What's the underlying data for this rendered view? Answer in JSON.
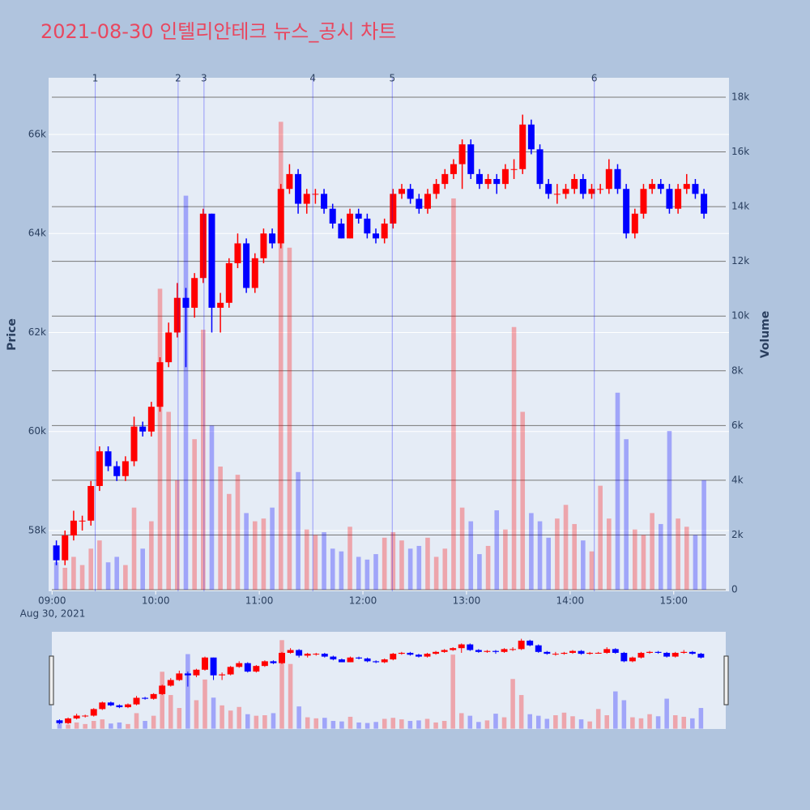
{
  "chart_data": {
    "type": "candlestick",
    "title": "2021-08-30 인텔리안테크 뉴스_공시 차트",
    "ylabel": "Price",
    "y2label": "Volume",
    "x_date_label": "Aug 30, 2021",
    "increasing_color": "#ff0000",
    "decreasing_color": "#0000ff",
    "grid": true,
    "rangeslider": true,
    "x": [
      "09:00",
      "09:05",
      "09:10",
      "09:15",
      "09:20",
      "09:25",
      "09:30",
      "09:35",
      "09:40",
      "09:45",
      "09:50",
      "09:55",
      "10:00",
      "10:05",
      "10:10",
      "10:15",
      "10:20",
      "10:25",
      "10:30",
      "10:35",
      "10:40",
      "10:45",
      "10:50",
      "10:55",
      "11:00",
      "11:05",
      "11:10",
      "11:15",
      "11:20",
      "11:25",
      "11:30",
      "11:35",
      "11:40",
      "11:45",
      "11:50",
      "11:55",
      "12:00",
      "12:05",
      "12:10",
      "12:15",
      "12:20",
      "12:25",
      "12:30",
      "12:35",
      "12:40",
      "12:45",
      "12:50",
      "12:55",
      "13:00",
      "13:05",
      "13:10",
      "13:15",
      "13:20",
      "13:25",
      "13:30",
      "13:35",
      "13:40",
      "13:45",
      "13:50",
      "13:55",
      "14:00",
      "14:05",
      "14:10",
      "14:15",
      "14:20",
      "14:25",
      "14:30",
      "14:35",
      "14:40",
      "14:45",
      "14:50",
      "14:55",
      "15:00",
      "15:05",
      "15:10",
      "15:15"
    ],
    "open": [
      57700,
      57400,
      57900,
      58200,
      58200,
      58900,
      59600,
      59300,
      59100,
      59400,
      60100,
      60000,
      60500,
      61400,
      62000,
      62700,
      62500,
      63100,
      64400,
      62500,
      62600,
      63400,
      63800,
      62900,
      63500,
      64000,
      63800,
      64900,
      65200,
      64600,
      64800,
      64800,
      64500,
      64200,
      63900,
      64400,
      64300,
      64000,
      63900,
      64200,
      64800,
      64900,
      64700,
      64500,
      64800,
      65000,
      65200,
      65400,
      65800,
      65200,
      65000,
      65100,
      65000,
      65300,
      65300,
      66200,
      65700,
      65000,
      64800,
      64800,
      64900,
      65100,
      64800,
      64900,
      64900,
      65300,
      64900,
      64000,
      64400,
      64900,
      65000,
      64900,
      64500,
      64900,
      65000,
      64800
    ],
    "high": [
      57800,
      58000,
      58400,
      58300,
      59000,
      59700,
      59700,
      59400,
      59500,
      60300,
      60200,
      60600,
      61500,
      62200,
      63000,
      62900,
      63200,
      64500,
      64400,
      62800,
      63500,
      64000,
      63900,
      63600,
      64100,
      64100,
      65000,
      65400,
      65300,
      64900,
      64900,
      64900,
      64600,
      64300,
      64500,
      64500,
      64400,
      64100,
      64300,
      64900,
      65000,
      65000,
      64800,
      64900,
      65100,
      65300,
      65500,
      65900,
      65900,
      65300,
      65200,
      65200,
      65400,
      65500,
      66400,
      66300,
      65800,
      65100,
      65000,
      65000,
      65200,
      65200,
      65000,
      65000,
      65500,
      65400,
      65000,
      64500,
      65000,
      65100,
      65100,
      65000,
      65000,
      65200,
      65100,
      64900
    ],
    "low": [
      57300,
      57300,
      57800,
      58000,
      58100,
      58800,
      59200,
      59000,
      59000,
      59300,
      59900,
      59900,
      60400,
      61300,
      61900,
      61300,
      62300,
      63000,
      62000,
      62000,
      62500,
      63300,
      62800,
      62800,
      63400,
      63700,
      63700,
      64800,
      64400,
      64400,
      64600,
      64400,
      64100,
      63900,
      63900,
      64200,
      63900,
      63800,
      63800,
      64100,
      64700,
      64600,
      64400,
      64400,
      64700,
      64900,
      65100,
      64900,
      65100,
      64900,
      64900,
      64800,
      64900,
      65100,
      65200,
      65600,
      64900,
      64700,
      64600,
      64700,
      64800,
      64700,
      64700,
      64800,
      64800,
      64800,
      63900,
      63900,
      64300,
      64800,
      64800,
      64400,
      64400,
      64800,
      64700,
      64300
    ],
    "close": [
      57400,
      57900,
      58200,
      58200,
      58900,
      59600,
      59300,
      59100,
      59400,
      60100,
      60000,
      60500,
      61400,
      62000,
      62700,
      62500,
      63100,
      64400,
      62500,
      62600,
      63400,
      63800,
      62900,
      63500,
      64000,
      63800,
      64900,
      65200,
      64600,
      64800,
      64800,
      64500,
      64200,
      63900,
      64400,
      64300,
      64000,
      63900,
      64200,
      64800,
      64900,
      64700,
      64500,
      64800,
      65000,
      65200,
      65400,
      65800,
      65200,
      65000,
      65100,
      65000,
      65300,
      65300,
      66200,
      65700,
      65000,
      64800,
      64800,
      64900,
      65100,
      64800,
      64900,
      64900,
      65300,
      64900,
      64000,
      64400,
      64900,
      65000,
      64900,
      64500,
      64900,
      65000,
      64800,
      64400
    ],
    "volume": [
      1000,
      800,
      1200,
      900,
      1500,
      1800,
      1000,
      1200,
      900,
      3000,
      1500,
      2500,
      11000,
      6500,
      4000,
      14400,
      5500,
      9500,
      6000,
      4500,
      3500,
      4200,
      2800,
      2500,
      2600,
      3000,
      17100,
      12500,
      4300,
      2200,
      2000,
      2100,
      1500,
      1400,
      2300,
      1200,
      1100,
      1300,
      1900,
      2100,
      1800,
      1500,
      1600,
      1900,
      1200,
      1500,
      14300,
      3000,
      2500,
      1300,
      1600,
      2900,
      2200,
      9600,
      6500,
      2800,
      2500,
      1900,
      2600,
      3100,
      2400,
      1800,
      1400,
      3800,
      2600,
      7200,
      5500,
      2200,
      2000,
      2800,
      2400,
      5800,
      2600,
      2300,
      2000,
      4000
    ],
    "xlim": [
      "08:58",
      "15:32"
    ],
    "xticks": [
      "09:00",
      "10:00",
      "11:00",
      "12:00",
      "13:00",
      "14:00",
      "15:00"
    ],
    "ylim": [
      56773,
      67145
    ],
    "yticks": [
      {
        "value": 58000,
        "label": "58k"
      },
      {
        "value": 60000,
        "label": "60k"
      },
      {
        "value": 62000,
        "label": "62k"
      },
      {
        "value": 64000,
        "label": "64k"
      },
      {
        "value": 66000,
        "label": "66k"
      }
    ],
    "y2lim": [
      -59,
      18710
    ],
    "y2ticks": [
      0,
      {
        "value": 2000,
        "label": "2k"
      },
      {
        "value": 4000,
        "label": "4k"
      },
      {
        "value": 6000,
        "label": "6k"
      },
      {
        "value": 8000,
        "label": "8k"
      },
      {
        "value": 10000,
        "label": "10k"
      },
      {
        "value": 12000,
        "label": "12k"
      },
      {
        "value": 14000,
        "label": "14k"
      },
      {
        "value": 16000,
        "label": "16k"
      },
      {
        "value": 18000,
        "label": "18k"
      }
    ],
    "annotations": [
      {
        "x": "09:25",
        "text": "1"
      },
      {
        "x": "10:13",
        "text": "2"
      },
      {
        "x": "10:28",
        "text": "3"
      },
      {
        "x": "11:31",
        "text": "4"
      },
      {
        "x": "12:17",
        "text": "5"
      },
      {
        "x": "14:14",
        "text": "6"
      }
    ]
  }
}
